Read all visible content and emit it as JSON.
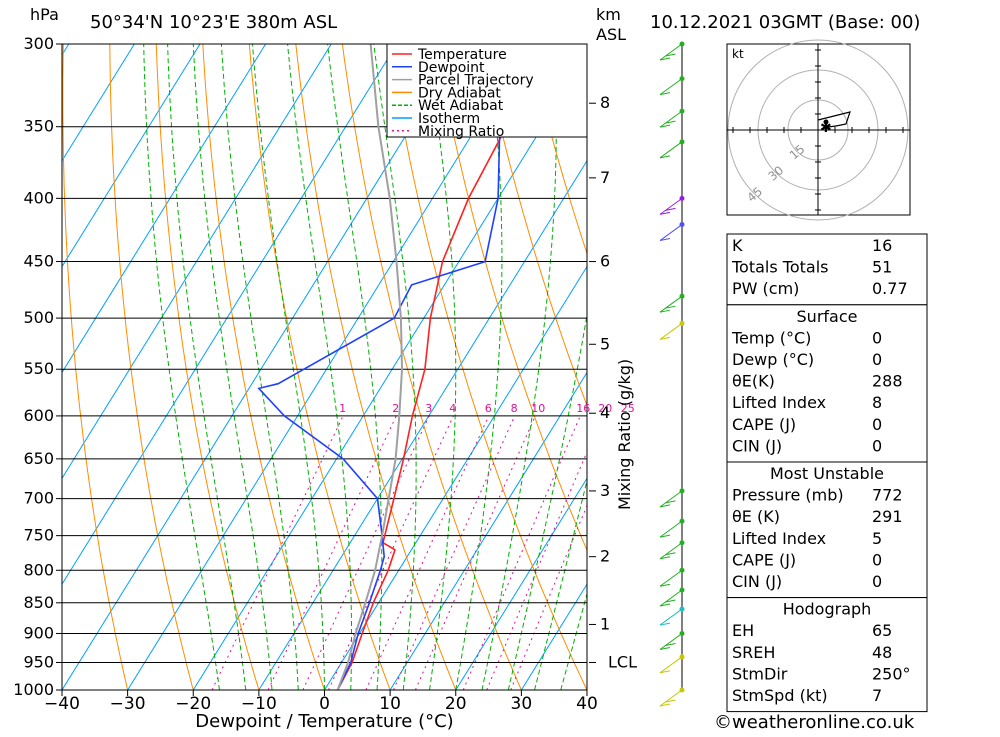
{
  "header": {
    "pressure_unit": "hPa",
    "location": "50°34'N  10°23'E  380m  ASL",
    "km_unit_line1": "km",
    "km_unit_line2": "ASL",
    "datetime": "10.12.2021  03GMT  (Base: 00)"
  },
  "chart_data": {
    "type": "line",
    "title": "",
    "xlabel": "Dewpoint / Temperature (°C)",
    "ylabel": "",
    "xlim": [
      -40,
      40
    ],
    "ylim": [
      1000,
      300
    ],
    "y_scale": "log",
    "x_ticks": [
      "−40",
      "−30",
      "−20",
      "−10",
      "0",
      "10",
      "20",
      "30",
      "40"
    ],
    "x_tick_values": [
      -40,
      -30,
      -20,
      -10,
      0,
      10,
      20,
      30,
      40
    ],
    "pressure_levels": [
      300,
      350,
      400,
      450,
      500,
      550,
      600,
      650,
      700,
      750,
      800,
      850,
      900,
      950,
      1000
    ],
    "km_ticks": [
      {
        "label": "8",
        "p": 335
      },
      {
        "label": "7",
        "p": 385
      },
      {
        "label": "6",
        "p": 450
      },
      {
        "label": "5",
        "p": 525
      },
      {
        "label": "4",
        "p": 597
      },
      {
        "label": "3",
        "p": 690
      },
      {
        "label": "2",
        "p": 780
      },
      {
        "label": "1",
        "p": 885
      },
      {
        "label": "LCL",
        "p": 950
      }
    ],
    "mixing_ratio_axis_label": "Mixing Ratio (g/kg)",
    "mixing_ratio_labels": [
      "1",
      "2",
      "3",
      "4",
      "6",
      "8",
      "10",
      "16",
      "20",
      "25"
    ],
    "legend": {
      "placement": "top-center",
      "entries": [
        {
          "name": "Temperature",
          "color": "#ff2020"
        },
        {
          "name": "Dewpoint",
          "color": "#2040ff"
        },
        {
          "name": "Parcel Trajectory",
          "color": "#a0a0a0"
        },
        {
          "name": "Dry Adiabat",
          "color": "#ff8c00"
        },
        {
          "name": "Wet Adiabat",
          "color": "#00b000"
        },
        {
          "name": "Isotherm",
          "color": "#00a0ff"
        },
        {
          "name": "Mixing Ratio",
          "color": "#e0109a"
        }
      ]
    },
    "series": [
      {
        "name": "Temperature",
        "color": "#ff2020",
        "points": [
          [
            1000,
            2.0
          ],
          [
            950,
            1.6
          ],
          [
            900,
            0.4
          ],
          [
            850,
            -0.8
          ],
          [
            800,
            -1.6
          ],
          [
            770,
            -2.5
          ],
          [
            760,
            -5.0
          ],
          [
            700,
            -7.5
          ],
          [
            650,
            -9.8
          ],
          [
            600,
            -12.5
          ],
          [
            550,
            -15.0
          ],
          [
            500,
            -19.0
          ],
          [
            450,
            -22.5
          ],
          [
            400,
            -24.5
          ],
          [
            350,
            -25.5
          ],
          [
            340,
            -24.5
          ],
          [
            330,
            -21.0
          ],
          [
            300,
            -19.0
          ]
        ]
      },
      {
        "name": "Dewpoint",
        "color": "#2040ff",
        "points": [
          [
            1000,
            2.0
          ],
          [
            950,
            1.4
          ],
          [
            900,
            -0.2
          ],
          [
            850,
            -1.4
          ],
          [
            800,
            -2.8
          ],
          [
            780,
            -3.5
          ],
          [
            750,
            -5.8
          ],
          [
            700,
            -10.0
          ],
          [
            650,
            -19.0
          ],
          [
            600,
            -32.0
          ],
          [
            570,
            -38.5
          ],
          [
            565,
            -36.0
          ],
          [
            500,
            -24.5
          ],
          [
            470,
            -25.0
          ],
          [
            450,
            -16.0
          ],
          [
            400,
            -20.0
          ],
          [
            350,
            -26.5
          ],
          [
            320,
            -35.0
          ],
          [
            300,
            -41.0
          ]
        ]
      },
      {
        "name": "Parcel Trajectory",
        "color": "#a0a0a0",
        "points": [
          [
            1000,
            2.0
          ],
          [
            950,
            1.0
          ],
          [
            900,
            -0.6
          ],
          [
            850,
            -2.0
          ],
          [
            800,
            -3.6
          ],
          [
            750,
            -5.8
          ],
          [
            700,
            -8.3
          ],
          [
            650,
            -11.0
          ],
          [
            600,
            -14.5
          ],
          [
            550,
            -18.5
          ],
          [
            500,
            -23.5
          ],
          [
            450,
            -29.5
          ],
          [
            400,
            -36.5
          ],
          [
            350,
            -45.0
          ],
          [
            300,
            -54.0
          ]
        ]
      }
    ],
    "wind_barbs": [
      {
        "p": 300,
        "color": "#20b020"
      },
      {
        "p": 320,
        "color": "#20b020"
      },
      {
        "p": 340,
        "color": "#20b020"
      },
      {
        "p": 360,
        "color": "#20b020"
      },
      {
        "p": 400,
        "color": "#9020e0"
      },
      {
        "p": 420,
        "color": "#5050f0"
      },
      {
        "p": 480,
        "color": "#20b020"
      },
      {
        "p": 505,
        "color": "#c8c800"
      },
      {
        "p": 690,
        "color": "#20b020"
      },
      {
        "p": 730,
        "color": "#20b020"
      },
      {
        "p": 760,
        "color": "#20b020"
      },
      {
        "p": 800,
        "color": "#20b020"
      },
      {
        "p": 830,
        "color": "#20b020"
      },
      {
        "p": 860,
        "color": "#20c0c0"
      },
      {
        "p": 900,
        "color": "#20b020"
      },
      {
        "p": 940,
        "color": "#c8c800"
      },
      {
        "p": 1000,
        "color": "#c8c800"
      }
    ]
  },
  "hodograph": {
    "unit": "kt",
    "ring_labels": [
      "15",
      "30",
      "45"
    ]
  },
  "indices": [
    {
      "label": "K",
      "value": "16"
    },
    {
      "label": "Totals Totals",
      "value": "51"
    },
    {
      "label": "PW (cm)",
      "value": "0.77"
    }
  ],
  "surface": {
    "title": "Surface",
    "rows": [
      {
        "label": "Temp (°C)",
        "value": "0"
      },
      {
        "label": "Dewp (°C)",
        "value": "0"
      },
      {
        "label": "θE(K)",
        "value": "288"
      },
      {
        "label": "Lifted Index",
        "value": "8"
      },
      {
        "label": "CAPE (J)",
        "value": "0"
      },
      {
        "label": "CIN (J)",
        "value": "0"
      }
    ]
  },
  "most_unstable": {
    "title": "Most Unstable",
    "rows": [
      {
        "label": "Pressure (mb)",
        "value": "772"
      },
      {
        "label": "θE (K)",
        "value": "291"
      },
      {
        "label": "Lifted Index",
        "value": "5"
      },
      {
        "label": "CAPE (J)",
        "value": "0"
      },
      {
        "label": "CIN (J)",
        "value": "0"
      }
    ]
  },
  "hodograph_table": {
    "title": "Hodograph",
    "rows": [
      {
        "label": "EH",
        "value": "65"
      },
      {
        "label": "SREH",
        "value": "48"
      },
      {
        "label": "StmDir",
        "value": "250°"
      },
      {
        "label": "StmSpd (kt)",
        "value": "7"
      }
    ]
  },
  "footer": {
    "copyright": "©weatheronline.co.uk"
  },
  "colors": {
    "isobar": "#000000",
    "grid_frame": "#000000"
  }
}
